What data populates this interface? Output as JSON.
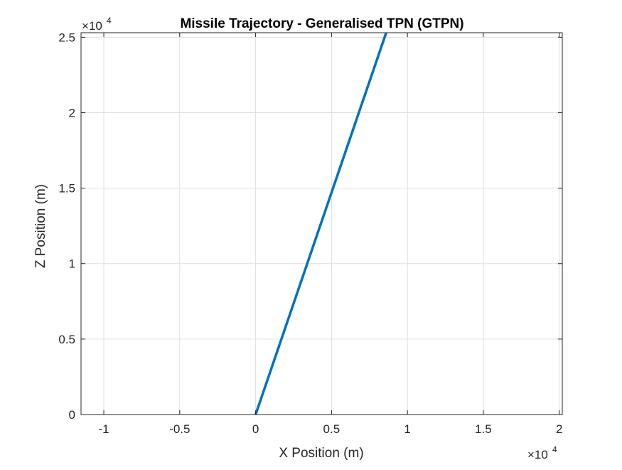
{
  "chart_data": {
    "type": "line",
    "title": "Missile Trajectory - Generalised TPN (GTPN)",
    "xlabel": "X Position (m)",
    "ylabel": "Z Position (m)",
    "x_exponent_base": "×10",
    "x_exponent_power": "4",
    "y_exponent_base": "×10",
    "y_exponent_power": "4",
    "xlim": [
      -11500,
      20200
    ],
    "ylim": [
      0,
      25300
    ],
    "xticks": [
      -10000,
      -5000,
      0,
      5000,
      10000,
      15000,
      20000
    ],
    "xtick_labels": [
      "-1",
      "-0.5",
      "0",
      "0.5",
      "1",
      "1.5",
      "2"
    ],
    "yticks": [
      0,
      5000,
      10000,
      15000,
      20000,
      25000
    ],
    "ytick_labels": [
      "0",
      "0.5",
      "1",
      "1.5",
      "2",
      "2.5"
    ],
    "grid": true,
    "series": [
      {
        "color": "#0072BD",
        "x": [
          0,
          8600
        ],
        "y": [
          0,
          25300
        ]
      }
    ]
  }
}
